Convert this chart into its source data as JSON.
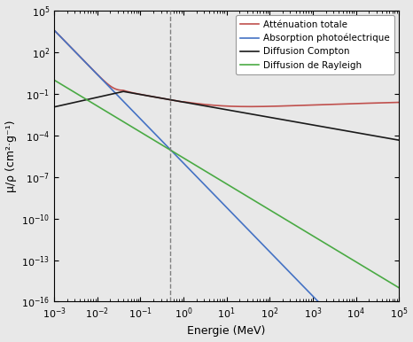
{
  "title": "",
  "xlabel": "Energie (MeV)",
  "ylabel": "μ/ρ (cm²·g⁻¹)",
  "xlim": [
    0.001,
    100000.0
  ],
  "ylim": [
    1e-16,
    100000.0
  ],
  "dashed_x": 0.5,
  "legend_entries": [
    {
      "label": "Atténuation totale",
      "color": "#c0504d"
    },
    {
      "label": "Absorption photoélectrique",
      "color": "#4472c4"
    },
    {
      "label": "Diffusion Compton",
      "color": "#1a1a1a"
    },
    {
      "label": "Diffusion de Rayleigh",
      "color": "#4aaa44"
    }
  ],
  "background_color": "#e8e8e8",
  "figsize": [
    4.66,
    3.86
  ],
  "dpi": 100
}
